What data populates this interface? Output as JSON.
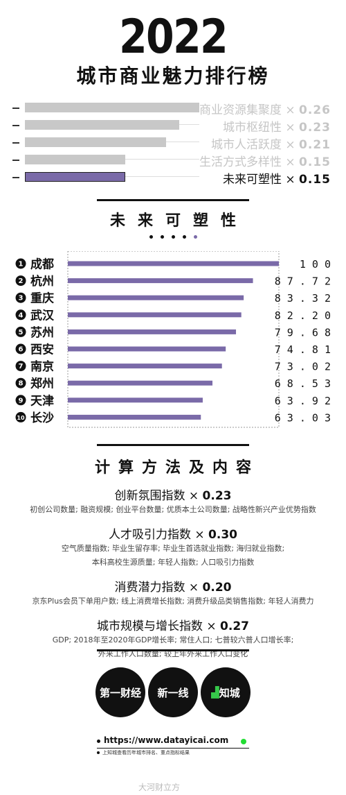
{
  "header": {
    "year": "2022",
    "title": "城市商业魅力排行榜"
  },
  "weights": [
    {
      "label": "商业资源集聚度",
      "value": 0.26,
      "text": "0.26",
      "active": false
    },
    {
      "label": "城市枢纽性",
      "value": 0.23,
      "text": "0.23",
      "active": false
    },
    {
      "label": "城市人活跃度",
      "value": 0.21,
      "text": "0.21",
      "active": false
    },
    {
      "label": "生活方式多样性",
      "value": 0.15,
      "text": "0.15",
      "active": false
    },
    {
      "label": "未来可塑性",
      "value": 0.15,
      "text": "0.15",
      "active": true
    }
  ],
  "weights_multiplier": "×",
  "section_title": "未来可塑性",
  "page_dots": {
    "count": 5,
    "active_index": 4
  },
  "chart_data": {
    "type": "bar",
    "orientation": "horizontal",
    "categories": [
      "成都",
      "杭州",
      "重庆",
      "武汉",
      "苏州",
      "西安",
      "南京",
      "郑州",
      "天津",
      "长沙"
    ],
    "ranks": [
      "1",
      "2",
      "3",
      "4",
      "5",
      "6",
      "7",
      "8",
      "9",
      "10"
    ],
    "values": [
      100,
      87.72,
      83.32,
      82.2,
      79.68,
      74.81,
      73.02,
      68.53,
      63.92,
      63.03
    ],
    "value_labels": [
      "1 0 0",
      "8 7 . 7 2",
      "8 3 . 3 2",
      "8 2 . 2 0",
      "7 9 . 6 8",
      "7 4 . 8 1",
      "7 3 . 0 2",
      "6 8 . 5 3",
      "6 3 . 9 2",
      "6 3 . 0 3"
    ],
    "xlim": [
      0,
      100
    ],
    "bar_color": "#7a6aa8"
  },
  "methods_title": "计算方法及内容",
  "methods": [
    {
      "name": "创新氛围指数",
      "multiplier": "×",
      "weight": "0.23",
      "lines": [
        "初创公司数量; 融资规模; 创业平台数量; 优质本土公司数量; 战略性新兴产业优势指数"
      ]
    },
    {
      "name": "人才吸引力指数",
      "multiplier": "×",
      "weight": "0.30",
      "lines": [
        "空气质量指数; 毕业生留存率; 毕业生首选就业指数; 海归就业指数;",
        "本科高校生源质量; 年轻人指数; 人口吸引力指数"
      ]
    },
    {
      "name": "消费潜力指数",
      "multiplier": "×",
      "weight": "0.20",
      "lines": [
        "京东Plus会员下单用户数; 线上消费增长指数; 消费升级品类销售指数; 年轻人消费力"
      ]
    },
    {
      "name": "城市规模与增长指数",
      "multiplier": "×",
      "weight": "0.27",
      "lines": [
        "GDP; 2018年至2020年GDP增长率; 常住人口; 七普较六普人口增长率;",
        "外来工作人口数量; 较上年外来工作人口变化"
      ]
    }
  ],
  "footer": {
    "logos": [
      {
        "text": "第一财经",
        "sub": "Y I C A I"
      },
      {
        "text": "新一线",
        "sub": "THE RISING LAB"
      },
      {
        "text": "知城",
        "sub": ""
      }
    ],
    "link": "https://www.datayicai.com",
    "note": "上知城查看历年城市排名、重点指标结果",
    "watermark": "大河财立方"
  }
}
